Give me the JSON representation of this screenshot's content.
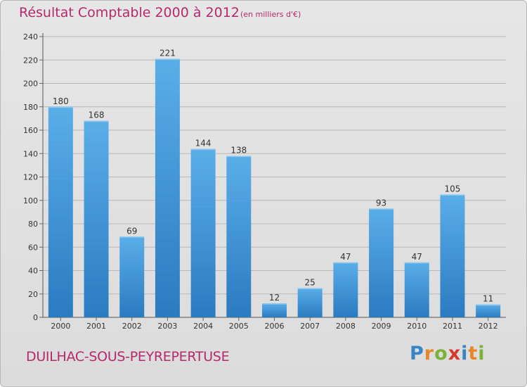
{
  "header": {
    "title": "Résultat Comptable 2000 à 2012",
    "subtitle": "(en milliers d'€)"
  },
  "footer": {
    "commune": "DUILHAC-SOUS-PEYREPERTUSE",
    "logo": {
      "text": "Proxiti",
      "letter_colors": [
        "#3a84c4",
        "#e8862a",
        "#7bb23a",
        "#d63a2a",
        "#3a84c4",
        "#e8862a",
        "#7bb23a"
      ]
    }
  },
  "colors": {
    "title": "#b52a6a",
    "bar_top": "#5aaee8",
    "bar_bottom": "#2a7bc0",
    "grid": "#b8b8b8",
    "axis_text": "#333333"
  },
  "chart_data": {
    "type": "bar",
    "title": "Résultat Comptable 2000 à 2012",
    "subtitle": "(en milliers d'€)",
    "xlabel": "",
    "ylabel": "",
    "categories": [
      "2000",
      "2001",
      "2002",
      "2003",
      "2004",
      "2005",
      "2006",
      "2007",
      "2008",
      "2009",
      "2010",
      "2011",
      "2012"
    ],
    "values": [
      180,
      168,
      69,
      221,
      144,
      138,
      12,
      25,
      47,
      93,
      47,
      105,
      11
    ],
    "ylim": [
      0,
      240
    ],
    "yticks": [
      0,
      20,
      40,
      60,
      80,
      100,
      120,
      140,
      160,
      180,
      200,
      220,
      240
    ],
    "grid": true,
    "data_labels": true
  }
}
